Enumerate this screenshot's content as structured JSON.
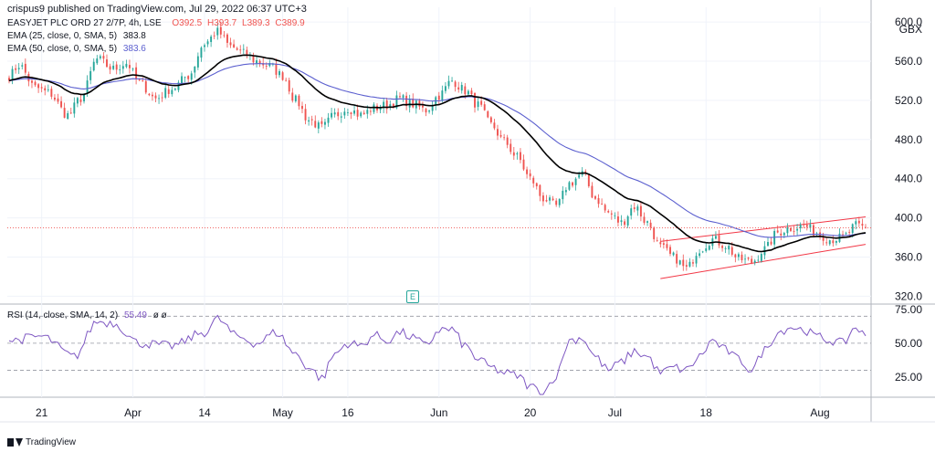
{
  "header": {
    "published": "crispus9 published on TradingView.com, Jul 29, 2022 06:37 UTC+3"
  },
  "legend": {
    "symbol": "EASYJET PLC ORD 27 2/7P, 4h, LSE",
    "open": "O392.5",
    "high": "H393.7",
    "low": "L389.3",
    "close": "C389.9",
    "ema25_label": "EMA (25, close, 0, SMA, 5)",
    "ema25_value": "383.8",
    "ema50_label": "EMA (50, close, 0, SMA, 5)",
    "ema50_value": "383.6",
    "rsi_label": "RSI (14, close, SMA, 14, 2)",
    "rsi_value": "55.49",
    "rsi_extra": "ø ø"
  },
  "currency": "GBX",
  "earnings_badge": "E",
  "footer": {
    "brand": "TradingView"
  },
  "colors": {
    "up": "#26a69a",
    "down": "#ef5350",
    "ema25": "#000000",
    "ema50": "#5b5fcf",
    "rsi": "#7e57c2",
    "channel": "#f23645"
  },
  "chart_data": [
    {
      "type": "candlestick",
      "title": "EASYJET PLC ORD 27 2/7P, 4h, LSE",
      "y_ticks": [
        600.0,
        560.0,
        520.0,
        480.0,
        440.0,
        400.0,
        360.0,
        320.0
      ],
      "y_tick_labels": [
        "600.0",
        "560.0",
        "520.0",
        "480.0",
        "440.0",
        "400.0",
        "360.0",
        "320.0"
      ],
      "ylim": [
        312,
        615
      ],
      "x_ticks": [
        "21",
        "Apr",
        "14",
        "May",
        "16",
        "Jun",
        "20",
        "Jul",
        "18",
        "Aug"
      ],
      "last_price": 389.9,
      "close_anchors": [
        [
          0,
          545
        ],
        [
          3,
          556
        ],
        [
          8,
          533
        ],
        [
          12,
          528
        ],
        [
          18,
          505
        ],
        [
          22,
          522
        ],
        [
          27,
          562
        ],
        [
          32,
          552
        ],
        [
          36,
          558
        ],
        [
          40,
          538
        ],
        [
          45,
          522
        ],
        [
          50,
          532
        ],
        [
          55,
          545
        ],
        [
          60,
          578
        ],
        [
          64,
          590
        ],
        [
          68,
          575
        ],
        [
          72,
          568
        ],
        [
          76,
          560
        ],
        [
          80,
          555
        ],
        [
          84,
          545
        ],
        [
          88,
          520
        ],
        [
          92,
          500
        ],
        [
          96,
          492
        ],
        [
          100,
          505
        ],
        [
          104,
          512
        ],
        [
          108,
          505
        ],
        [
          112,
          512
        ],
        [
          116,
          515
        ],
        [
          120,
          522
        ],
        [
          124,
          516
        ],
        [
          128,
          510
        ],
        [
          132,
          525
        ],
        [
          136,
          540
        ],
        [
          140,
          530
        ],
        [
          144,
          515
        ],
        [
          148,
          495
        ],
        [
          152,
          478
        ],
        [
          156,
          462
        ],
        [
          160,
          440
        ],
        [
          164,
          420
        ],
        [
          168,
          412
        ],
        [
          172,
          435
        ],
        [
          176,
          445
        ],
        [
          180,
          420
        ],
        [
          184,
          405
        ],
        [
          188,
          395
        ],
        [
          192,
          412
        ],
        [
          196,
          395
        ],
        [
          200,
          370
        ],
        [
          204,
          360
        ],
        [
          208,
          348
        ],
        [
          212,
          368
        ],
        [
          216,
          378
        ],
        [
          220,
          372
        ],
        [
          224,
          358
        ],
        [
          228,
          355
        ],
        [
          232,
          368
        ],
        [
          236,
          385
        ],
        [
          240,
          390
        ],
        [
          244,
          392
        ],
        [
          248,
          385
        ],
        [
          252,
          378
        ],
        [
          256,
          380
        ],
        [
          260,
          392
        ],
        [
          263,
          389.9
        ]
      ],
      "series": [
        {
          "name": "EMA (25, close, 0, SMA, 5)",
          "last": 383.8
        },
        {
          "name": "EMA (50, close, 0, SMA, 5)",
          "last": 383.6
        }
      ],
      "channel": {
        "upper": [
          [
            200,
            376
          ],
          [
            263,
            401
          ]
        ],
        "lower": [
          [
            200,
            338
          ],
          [
            263,
            373
          ]
        ]
      }
    },
    {
      "type": "line",
      "title": "RSI (14, close, SMA, 14, 2)",
      "y_ticks": [
        75.0,
        50.0,
        25.0
      ],
      "y_tick_labels": [
        "75.00",
        "50.00",
        "25.00"
      ],
      "ylim": [
        10,
        79
      ],
      "bands": [
        70,
        50,
        30
      ],
      "rsi_anchors": [
        [
          0,
          52
        ],
        [
          10,
          55
        ],
        [
          20,
          40
        ],
        [
          27,
          66
        ],
        [
          32,
          65
        ],
        [
          40,
          50
        ],
        [
          50,
          48
        ],
        [
          60,
          58
        ],
        [
          64,
          68
        ],
        [
          70,
          55
        ],
        [
          76,
          50
        ],
        [
          82,
          58
        ],
        [
          88,
          42
        ],
        [
          92,
          32
        ],
        [
          96,
          24
        ],
        [
          100,
          42
        ],
        [
          104,
          50
        ],
        [
          108,
          48
        ],
        [
          112,
          56
        ],
        [
          116,
          52
        ],
        [
          120,
          58
        ],
        [
          124,
          54
        ],
        [
          128,
          48
        ],
        [
          132,
          60
        ],
        [
          136,
          60
        ],
        [
          140,
          48
        ],
        [
          144,
          38
        ],
        [
          148,
          32
        ],
        [
          152,
          28
        ],
        [
          156,
          26
        ],
        [
          160,
          18
        ],
        [
          164,
          14
        ],
        [
          168,
          26
        ],
        [
          172,
          52
        ],
        [
          176,
          54
        ],
        [
          180,
          40
        ],
        [
          184,
          30
        ],
        [
          188,
          36
        ],
        [
          192,
          44
        ],
        [
          196,
          40
        ],
        [
          200,
          28
        ],
        [
          204,
          32
        ],
        [
          208,
          30
        ],
        [
          212,
          40
        ],
        [
          216,
          52
        ],
        [
          220,
          45
        ],
        [
          224,
          38
        ],
        [
          228,
          30
        ],
        [
          232,
          45
        ],
        [
          236,
          58
        ],
        [
          240,
          62
        ],
        [
          244,
          60
        ],
        [
          248,
          55
        ],
        [
          252,
          52
        ],
        [
          256,
          50
        ],
        [
          260,
          62
        ],
        [
          263,
          55.49
        ]
      ]
    }
  ]
}
